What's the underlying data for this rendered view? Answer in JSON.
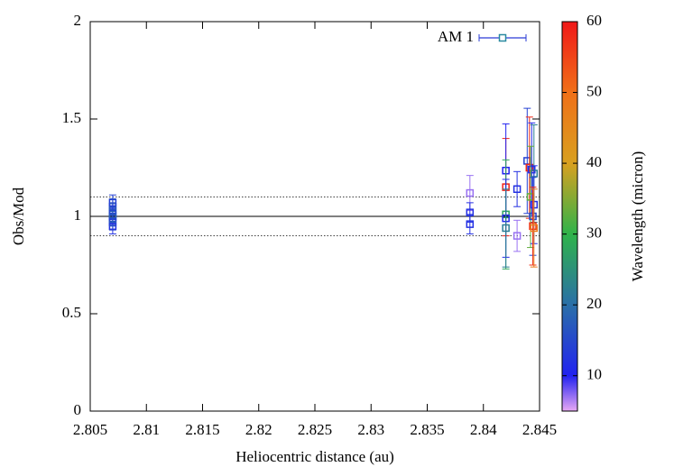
{
  "chart_data": {
    "type": "scatter",
    "xlabel": "Heliocentric distance (au)",
    "ylabel": "Obs/Mod",
    "xlim": [
      2.805,
      2.845
    ],
    "xticks": [
      2.805,
      2.81,
      2.815,
      2.82,
      2.825,
      2.83,
      2.835,
      2.84,
      2.845
    ],
    "ylim": [
      0,
      2
    ],
    "yticks": [
      0,
      0.5,
      1,
      1.5,
      2
    ],
    "reference_lines": [
      {
        "value": 1,
        "style": "solid"
      },
      {
        "value": 0.9,
        "style": "dotted"
      },
      {
        "value": 1.1,
        "style": "dotted"
      }
    ],
    "legend": "top-right",
    "colorbar": {
      "label": "Wavelength (micron)",
      "lim": [
        5,
        60
      ],
      "ticks": [
        10,
        20,
        30,
        40,
        50,
        60
      ],
      "palette": [
        [
          5,
          "#e8a8f4"
        ],
        [
          10,
          "#2222f0"
        ],
        [
          20,
          "#2a6fa8"
        ],
        [
          30,
          "#2fb34a"
        ],
        [
          40,
          "#d8a020"
        ],
        [
          50,
          "#f07018"
        ],
        [
          60,
          "#f01818"
        ]
      ]
    },
    "series": [
      {
        "name": "AM 1",
        "color": "#2a3bd6",
        "marker_color": "#2a8aa0",
        "x": [
          2.807,
          2.807,
          2.807,
          2.807,
          2.807,
          2.807,
          2.807,
          2.807,
          2.8388,
          2.8388,
          2.8388,
          2.842,
          2.842,
          2.842,
          2.842,
          2.842,
          2.843,
          2.843,
          2.8439,
          2.8441,
          2.8443,
          2.8445,
          2.8442,
          2.8445,
          2.8444,
          2.8444,
          2.8445
        ],
        "values": [
          0.95,
          0.97,
          0.99,
          1.0,
          1.01,
          1.03,
          1.05,
          1.07,
          1.12,
          1.02,
          0.96,
          1.15,
          1.235,
          1.01,
          0.99,
          0.94,
          1.14,
          0.9,
          1.285,
          1.25,
          1.24,
          1.22,
          1.1,
          1.06,
          1.0,
          0.95,
          0.94
        ],
        "errors": [
          0.04,
          0.04,
          0.04,
          0.04,
          0.04,
          0.04,
          0.04,
          0.04,
          0.09,
          0.05,
          0.05,
          0.25,
          0.24,
          0.28,
          0.2,
          0.2,
          0.09,
          0.08,
          0.27,
          0.26,
          0.24,
          0.25,
          0.26,
          0.2,
          0.2,
          0.2,
          0.2
        ],
        "wavelength": [
          12,
          14,
          16,
          13,
          18,
          15,
          17,
          14,
          7,
          12,
          12,
          59,
          10,
          28,
          11,
          22,
          12,
          7,
          14,
          58,
          11,
          22,
          33,
          12,
          15,
          57,
          48
        ]
      }
    ]
  }
}
